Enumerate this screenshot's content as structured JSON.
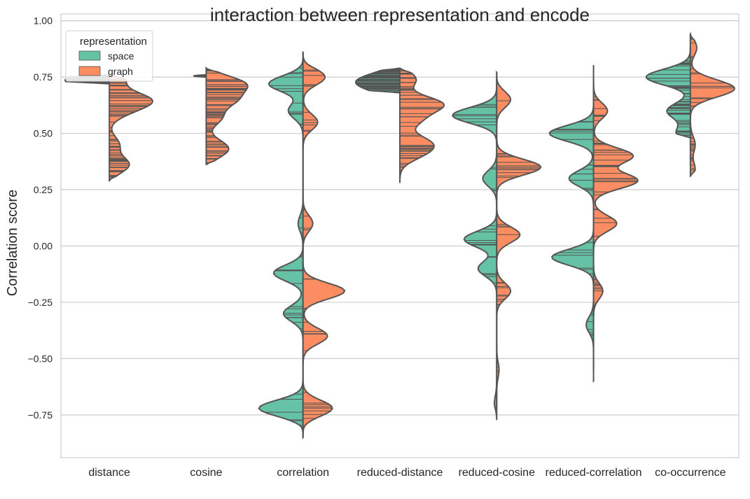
{
  "chart_data": {
    "type": "violin",
    "title": "interaction between representation and encode",
    "ylabel": "Correlation score",
    "xlabel": "",
    "ylim": [
      -0.94,
      1.03
    ],
    "yticks": [
      "1.00",
      "0.75",
      "0.50",
      "0.25",
      "0.00",
      "−0.25",
      "−0.50",
      "−0.75"
    ],
    "ytick_values": [
      1.0,
      0.75,
      0.5,
      0.25,
      0.0,
      -0.25,
      -0.5,
      -0.75
    ],
    "grid": true,
    "legend": {
      "title": "representation",
      "placement": "top-left"
    },
    "series": [
      {
        "name": "space",
        "color": "#66c2a5"
      },
      {
        "name": "graph",
        "color": "#fc8d62"
      }
    ],
    "categories": [
      "distance",
      "cosine",
      "correlation",
      "reduced-distance",
      "reduced-cosine",
      "reduced-correlation",
      "co-occurrence"
    ],
    "violins": [
      {
        "category": "distance",
        "space": {
          "range": [
            0.72,
            0.76
          ],
          "peaks": [
            [
              0.75,
              0.35
            ],
            [
              0.73,
              0.9
            ]
          ]
        },
        "graph": {
          "range": [
            0.29,
            0.76
          ],
          "peaks": [
            [
              0.74,
              0.3
            ],
            [
              0.65,
              0.75
            ],
            [
              0.6,
              0.3
            ],
            [
              0.45,
              0.2
            ],
            [
              0.36,
              0.4
            ]
          ]
        }
      },
      {
        "category": "cosine",
        "space": {
          "range": [
            0.75,
            0.76
          ],
          "peaks": [
            [
              0.755,
              1.0
            ]
          ]
        },
        "graph": {
          "range": [
            0.36,
            0.79
          ],
          "peaks": [
            [
              0.72,
              0.75
            ],
            [
              0.65,
              0.55
            ],
            [
              0.57,
              0.3
            ],
            [
              0.45,
              0.2
            ],
            [
              0.42,
              0.3
            ]
          ]
        }
      },
      {
        "category": "correlation",
        "space": {
          "range": [
            -0.85,
            0.86
          ],
          "peaks": [
            [
              0.72,
              0.7
            ],
            [
              0.6,
              0.3
            ],
            [
              0.1,
              0.1
            ],
            [
              -0.12,
              0.6
            ],
            [
              -0.3,
              0.4
            ],
            [
              -0.72,
              0.9
            ]
          ]
        },
        "graph": {
          "range": [
            -0.85,
            0.86
          ],
          "peaks": [
            [
              0.75,
              0.45
            ],
            [
              0.55,
              0.3
            ],
            [
              0.1,
              0.2
            ],
            [
              -0.2,
              0.85
            ],
            [
              -0.4,
              0.5
            ],
            [
              -0.72,
              0.6
            ]
          ]
        }
      },
      {
        "category": "reduced-distance",
        "space": {
          "range": [
            0.68,
            0.79
          ],
          "peaks": [
            [
              0.745,
              0.8
            ],
            [
              0.72,
              0.6
            ],
            [
              0.69,
              0.4
            ]
          ]
        },
        "graph": {
          "range": [
            0.28,
            0.79
          ],
          "peaks": [
            [
              0.74,
              0.35
            ],
            [
              0.63,
              0.9
            ],
            [
              0.56,
              0.4
            ],
            [
              0.46,
              0.55
            ],
            [
              0.41,
              0.4
            ]
          ]
        }
      },
      {
        "category": "reduced-cosine",
        "space": {
          "range": [
            -0.77,
            0.77
          ],
          "peaks": [
            [
              0.58,
              0.95
            ],
            [
              0.3,
              0.3
            ],
            [
              0.03,
              0.7
            ],
            [
              -0.1,
              0.4
            ],
            [
              -0.7,
              0.05
            ]
          ]
        },
        "graph": {
          "range": [
            -0.72,
            0.77
          ],
          "peaks": [
            [
              0.65,
              0.3
            ],
            [
              0.35,
              0.95
            ],
            [
              0.05,
              0.5
            ],
            [
              -0.2,
              0.3
            ],
            [
              -0.55,
              0.05
            ]
          ]
        }
      },
      {
        "category": "reduced-correlation",
        "space": {
          "range": [
            -0.6,
            0.8
          ],
          "peaks": [
            [
              0.5,
              0.9
            ],
            [
              0.3,
              0.5
            ],
            [
              -0.05,
              0.85
            ],
            [
              -0.35,
              0.15
            ]
          ]
        },
        "graph": {
          "range": [
            -0.55,
            0.75
          ],
          "peaks": [
            [
              0.6,
              0.3
            ],
            [
              0.4,
              0.85
            ],
            [
              0.29,
              0.95
            ],
            [
              0.1,
              0.5
            ],
            [
              -0.2,
              0.2
            ]
          ]
        }
      },
      {
        "category": "co-occurrence",
        "space": {
          "range": [
            0.48,
            0.94
          ],
          "peaks": [
            [
              0.75,
              0.95
            ],
            [
              0.6,
              0.5
            ],
            [
              0.5,
              0.3
            ]
          ]
        },
        "graph": {
          "range": [
            0.31,
            0.94
          ],
          "peaks": [
            [
              0.88,
              0.2
            ],
            [
              0.72,
              0.5
            ],
            [
              0.69,
              1.0
            ],
            [
              0.45,
              0.15
            ],
            [
              0.34,
              0.15
            ]
          ]
        }
      }
    ]
  }
}
